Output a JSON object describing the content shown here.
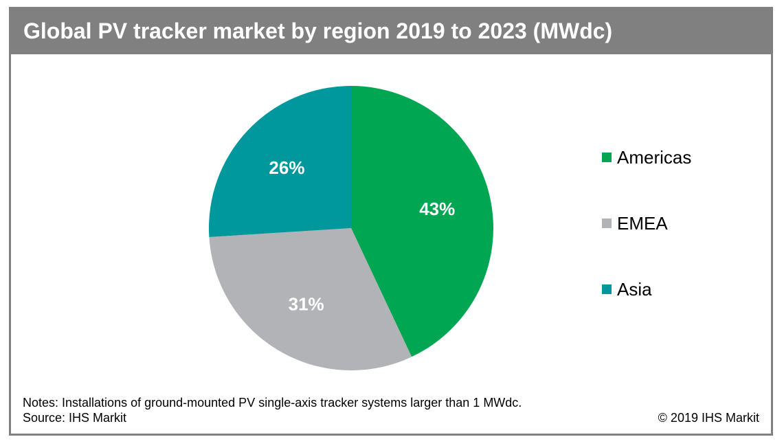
{
  "colors": {
    "frame": "#808080",
    "americas": "#00a651",
    "emea": "#b1b3b6",
    "asia": "#00979d",
    "label": "#ffffff"
  },
  "chart_data": {
    "type": "pie",
    "title": "Global PV tracker market by region 2019 to 2023 (MWdc)",
    "categories": [
      "Americas",
      "EMEA",
      "Asia"
    ],
    "values": [
      43,
      31,
      26
    ],
    "labels": [
      "43%",
      "31%",
      "26%"
    ],
    "legend_position": "right"
  },
  "footer": {
    "notes": "Notes: Installations of ground-mounted PV single-axis tracker systems larger than 1 MWdc.",
    "source": "Source: IHS Markit",
    "copyright": "© 2019 IHS Markit"
  }
}
